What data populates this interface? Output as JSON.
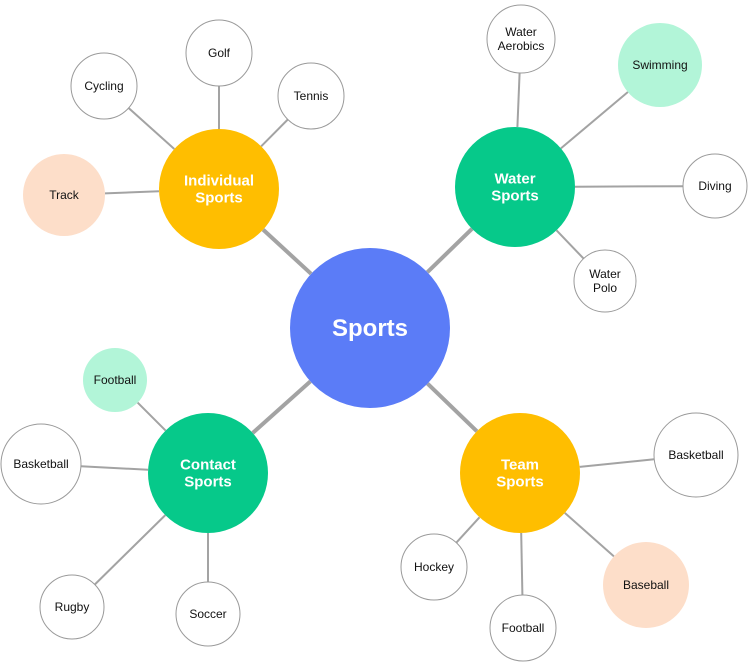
{
  "colors": {
    "center": "#5b7cf7",
    "hub_yellow": "#ffbe00",
    "hub_green": "#06c98a",
    "leaf_white": "#ffffff",
    "leaf_mint": "#b2f5d8",
    "leaf_peach": "#fddec9",
    "edge": "#a3a3a3",
    "stroke": "#9a9a9a"
  },
  "center": {
    "label": "Sports"
  },
  "hubs": {
    "individual": {
      "lines": [
        "Individual",
        "Sports"
      ]
    },
    "water": {
      "lines": [
        "Water",
        "Sports"
      ]
    },
    "contact": {
      "lines": [
        "Contact",
        "Sports"
      ]
    },
    "team": {
      "lines": [
        "Team",
        "Sports"
      ]
    }
  },
  "leaves": {
    "golf": {
      "lines": [
        "Golf"
      ]
    },
    "cycling": {
      "lines": [
        "Cycling"
      ]
    },
    "tennis": {
      "lines": [
        "Tennis"
      ]
    },
    "track": {
      "lines": [
        "Track"
      ]
    },
    "water_aerobics": {
      "lines": [
        "Water",
        "Aerobics"
      ]
    },
    "swimming": {
      "lines": [
        "Swimming"
      ]
    },
    "diving": {
      "lines": [
        "Diving"
      ]
    },
    "water_polo": {
      "lines": [
        "Water",
        "Polo"
      ]
    },
    "contact_football": {
      "lines": [
        "Football"
      ]
    },
    "contact_basketball": {
      "lines": [
        "Basketball"
      ]
    },
    "rugby": {
      "lines": [
        "Rugby"
      ]
    },
    "soccer": {
      "lines": [
        "Soccer"
      ]
    },
    "team_basketball": {
      "lines": [
        "Basketball"
      ]
    },
    "hockey": {
      "lines": [
        "Hockey"
      ]
    },
    "team_football": {
      "lines": [
        "Football"
      ]
    },
    "baseball": {
      "lines": [
        "Baseball"
      ]
    }
  }
}
